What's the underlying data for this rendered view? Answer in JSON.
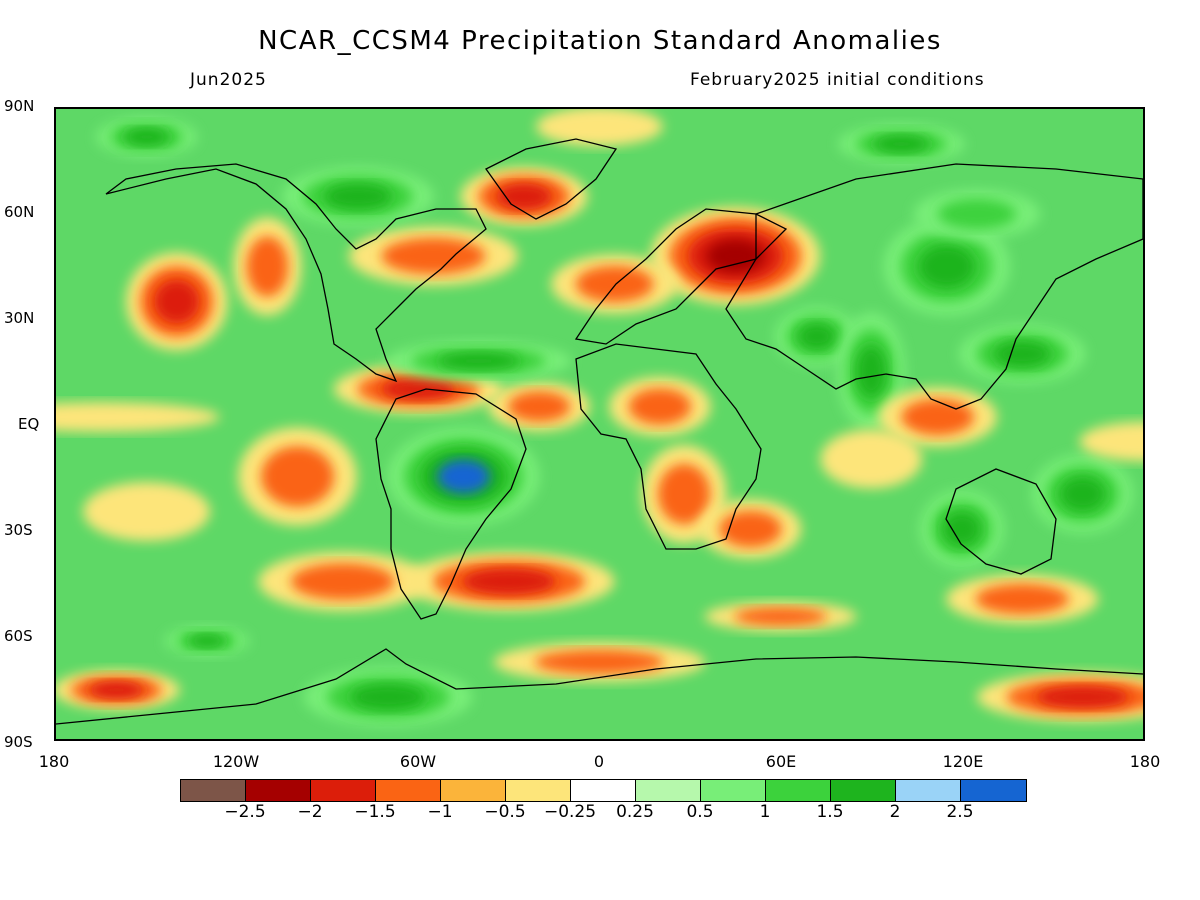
{
  "header": {
    "title": "NCAR_CCSM4 Precipitation Standard Anomalies",
    "valid_month": "Jun2025",
    "init_conditions": "February2025 initial conditions"
  },
  "axes": {
    "lat_labels": [
      "90N",
      "60N",
      "30N",
      "EQ",
      "30S",
      "60S",
      "90S"
    ],
    "lat_values": [
      90,
      60,
      30,
      0,
      -30,
      -60,
      -90
    ],
    "lon_labels": [
      "180",
      "120W",
      "60W",
      "0",
      "60E",
      "120E",
      "180"
    ],
    "lon_values": [
      -180,
      -120,
      -60,
      0,
      60,
      120,
      180
    ]
  },
  "legend": {
    "colors": [
      "#7d5548",
      "#a50000",
      "#dc1e0a",
      "#fa6414",
      "#fbb43a",
      "#fde57a",
      "#ffffff",
      "#b6f8ac",
      "#78ee78",
      "#3cd23c",
      "#1eb41e",
      "#9ad3f7",
      "#1565d2"
    ],
    "labels": [
      "-2.5",
      "-2",
      "-1.5",
      "-1",
      "-0.5",
      "-0.25",
      "0.25",
      "0.5",
      "1",
      "1.5",
      "2",
      "2.5"
    ],
    "level_values": [
      -2.5,
      -2,
      -1.5,
      -1,
      -0.5,
      -0.25,
      0.25,
      0.5,
      1,
      1.5,
      2,
      2.5
    ]
  },
  "anomaly_blobs": [
    {
      "lon": -60,
      "lat": 10,
      "rx": 20,
      "ry": 5,
      "value": -1.6
    },
    {
      "lon": -20,
      "lat": 5,
      "rx": 12,
      "ry": 5,
      "value": -1.4
    },
    {
      "lon": -45,
      "lat": -15,
      "rx": 18,
      "ry": 10,
      "value": 2.6
    },
    {
      "lon": -40,
      "lat": 18,
      "rx": 22,
      "ry": 4,
      "value": 2.5
    },
    {
      "lon": -165,
      "lat": 2,
      "rx": 28,
      "ry": 3,
      "value": -0.8
    },
    {
      "lon": -140,
      "lat": 35,
      "rx": 12,
      "ry": 10,
      "value": -1.6
    },
    {
      "lon": -110,
      "lat": 45,
      "rx": 8,
      "ry": 10,
      "value": -1.5
    },
    {
      "lon": -55,
      "lat": 48,
      "rx": 20,
      "ry": 6,
      "value": -1.2
    },
    {
      "lon": -25,
      "lat": 65,
      "rx": 15,
      "ry": 6,
      "value": -1.6
    },
    {
      "lon": 45,
      "lat": 48,
      "rx": 20,
      "ry": 10,
      "value": -2.2
    },
    {
      "lon": 5,
      "lat": 40,
      "rx": 15,
      "ry": 6,
      "value": -1.3
    },
    {
      "lon": 72,
      "lat": 25,
      "rx": 10,
      "ry": 6,
      "value": 2.5
    },
    {
      "lon": 90,
      "lat": 15,
      "rx": 8,
      "ry": 12,
      "value": 2.5
    },
    {
      "lon": 115,
      "lat": 45,
      "rx": 15,
      "ry": 10,
      "value": 2.5
    },
    {
      "lon": 140,
      "lat": 20,
      "rx": 15,
      "ry": 6,
      "value": 2.5
    },
    {
      "lon": 125,
      "lat": 60,
      "rx": 15,
      "ry": 5,
      "value": 1.5
    },
    {
      "lon": 112,
      "lat": 2,
      "rx": 14,
      "ry": 6,
      "value": -1.5
    },
    {
      "lon": 28,
      "lat": -20,
      "rx": 10,
      "ry": 10,
      "value": -1.3
    },
    {
      "lon": 50,
      "lat": -30,
      "rx": 12,
      "ry": 6,
      "value": -1.2
    },
    {
      "lon": -30,
      "lat": -45,
      "rx": 25,
      "ry": 6,
      "value": -1.8
    },
    {
      "lon": -85,
      "lat": -45,
      "rx": 20,
      "ry": 6,
      "value": -1.3
    },
    {
      "lon": 0,
      "lat": -68,
      "rx": 25,
      "ry": 4,
      "value": -1.4
    },
    {
      "lon": 160,
      "lat": -78,
      "rx": 25,
      "ry": 5,
      "value": -2.0
    },
    {
      "lon": -160,
      "lat": -76,
      "rx": 15,
      "ry": 4,
      "value": -1.8
    },
    {
      "lon": -70,
      "lat": -78,
      "rx": 20,
      "ry": 6,
      "value": 2.5
    },
    {
      "lon": -130,
      "lat": -62,
      "rx": 10,
      "ry": 3,
      "value": 2.5
    },
    {
      "lon": 160,
      "lat": -20,
      "rx": 12,
      "ry": 8,
      "value": 2.5
    },
    {
      "lon": 120,
      "lat": -30,
      "rx": 10,
      "ry": 8,
      "value": 2.5
    },
    {
      "lon": 60,
      "lat": -55,
      "rx": 18,
      "ry": 3,
      "value": -1.4
    },
    {
      "lon": 140,
      "lat": -50,
      "rx": 18,
      "ry": 5,
      "value": -1.0
    },
    {
      "lon": -80,
      "lat": 65,
      "rx": 18,
      "ry": 6,
      "value": 2.5
    },
    {
      "lon": 100,
      "lat": 80,
      "rx": 15,
      "ry": 4,
      "value": 2.5
    },
    {
      "lon": -150,
      "lat": 82,
      "rx": 12,
      "ry": 4,
      "value": 2.5
    },
    {
      "lon": 0,
      "lat": 85,
      "rx": 15,
      "ry": 4,
      "value": -0.8
    },
    {
      "lon": 20,
      "lat": 5,
      "rx": 12,
      "ry": 6,
      "value": -1.0
    },
    {
      "lon": 180,
      "lat": -5,
      "rx": 15,
      "ry": 4,
      "value": -0.6
    },
    {
      "lon": -100,
      "lat": -15,
      "rx": 14,
      "ry": 10,
      "value": -1.3
    },
    {
      "lon": -150,
      "lat": -25,
      "rx": 15,
      "ry": 6,
      "value": -0.9
    },
    {
      "lon": 90,
      "lat": -10,
      "rx": 12,
      "ry": 6,
      "value": -0.8
    }
  ]
}
